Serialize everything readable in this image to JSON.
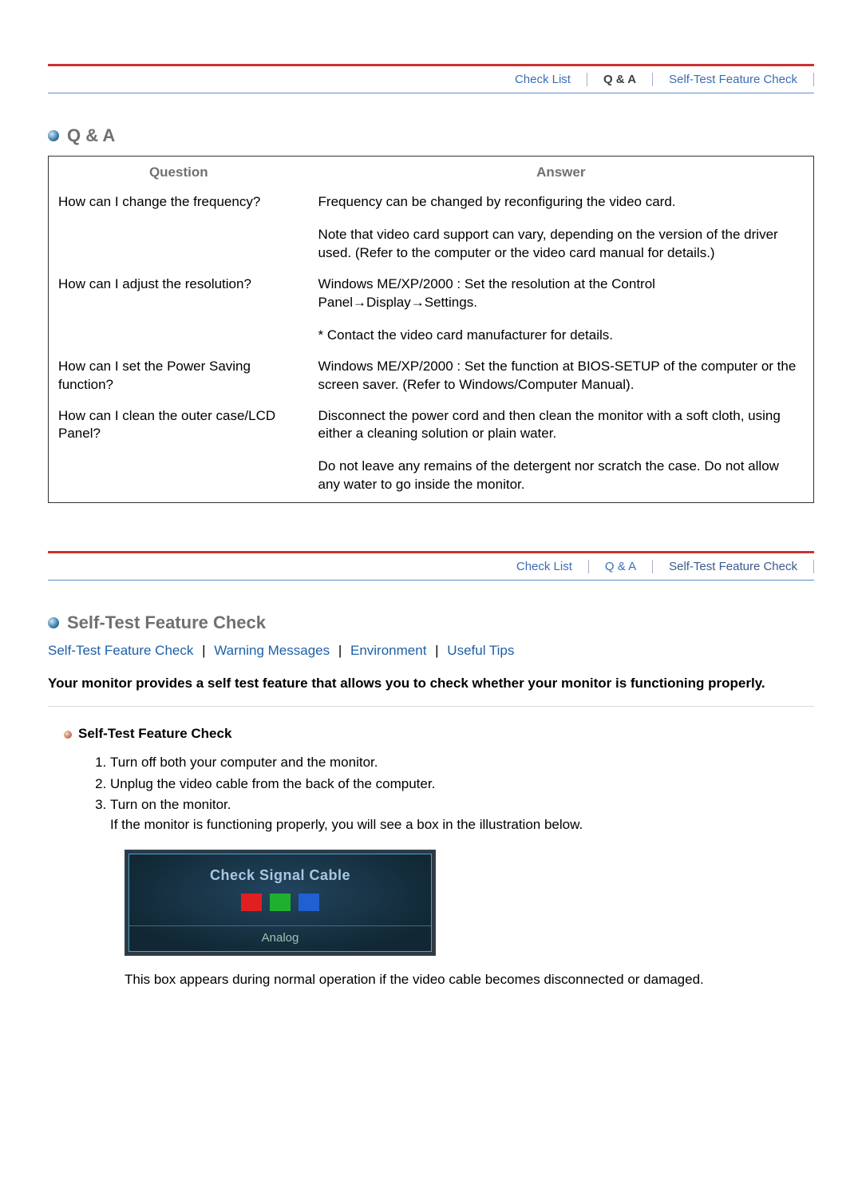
{
  "nav1": {
    "items": [
      {
        "label": "Check List",
        "active": false
      },
      {
        "label": "Q & A",
        "active": true,
        "boldStyle": true
      },
      {
        "label": "Self-Test Feature Check",
        "active": false
      }
    ],
    "accent_color": "#CC3333",
    "link_color": "#3a6db5",
    "active_color": "#555555"
  },
  "qa_section": {
    "title": "Q & A",
    "headers": {
      "question": "Question",
      "answer": "Answer"
    },
    "rows": [
      {
        "question": "How can I change the frequency?",
        "answers": [
          "Frequency can be changed by reconfiguring the video card.",
          "Note that video card support can vary, depending on the version of the driver used. (Refer to the computer or the video card manual for details.)"
        ]
      },
      {
        "question": "How can I adjust the resolution?",
        "answers": [
          "Windows ME/XP/2000 : Set the resolution at the Control Panel→Display→Settings.",
          "* Contact the video card manufacturer for details."
        ]
      },
      {
        "question": "How can I set the Power Saving function?",
        "answers": [
          "Windows ME/XP/2000 : Set the function at BIOS-SETUP of the computer or the screen saver. (Refer to Windows/Computer Manual)."
        ]
      },
      {
        "question": "How can I clean the outer case/LCD Panel?",
        "answers": [
          "Disconnect the power cord and then clean the monitor with a soft cloth, using either a cleaning solution or plain water.",
          "Do not leave any remains of the detergent nor scratch the case. Do not allow any water to go inside the monitor."
        ]
      }
    ]
  },
  "nav2": {
    "items": [
      {
        "label": "Check List",
        "active": false
      },
      {
        "label": "Q & A",
        "active": false
      },
      {
        "label": "Self-Test Feature Check",
        "active": true
      }
    ]
  },
  "selftest_section": {
    "title": "Self-Test Feature Check",
    "sublinks": [
      "Self-Test Feature Check",
      "Warning Messages",
      "Environment",
      "Useful Tips"
    ],
    "intro": "Your monitor provides a self test feature that allows you to check whether your monitor is functioning properly.",
    "sub_heading": "Self-Test Feature Check",
    "steps": [
      "Turn off both your computer and the monitor.",
      "Unplug the video cable from the back of the computer.",
      "Turn on the monitor."
    ],
    "step3_extra": "If the monitor is functioning properly, you will see a box in the illustration below.",
    "signal_box": {
      "title": "Check Signal Cable",
      "colors": [
        "#e02020",
        "#20b030",
        "#2060d0"
      ],
      "label": "Analog",
      "bg_outer": "#2e3a45",
      "bg_inner_from": "#22455f",
      "bg_inner_to": "#112733",
      "border_inner": "#4da2c4",
      "title_color": "#a8c8e0",
      "label_color": "#9fc2b2"
    },
    "post_text": "This box appears during normal operation if the video cable becomes disconnected or damaged."
  }
}
